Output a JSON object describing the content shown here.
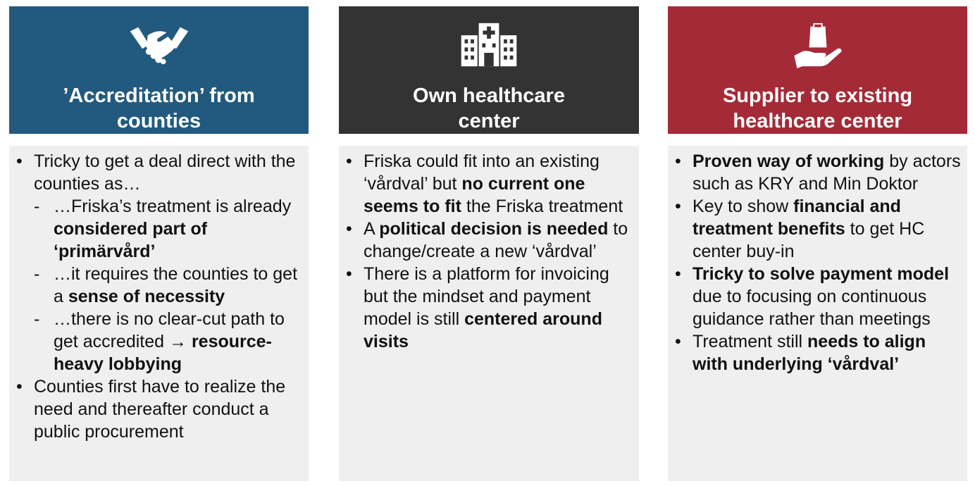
{
  "columns": [
    {
      "title_lines": [
        "’Accreditation’ from",
        "counties"
      ],
      "icon": "handshake-icon",
      "color": "#215a7e",
      "b1": {
        "text": "Tricky to get a deal direct with the counties as…",
        "sub": [
          {
            "pre": "…Friska’s treatment is already ",
            "bold": "considered part of ‘primärvård’"
          },
          {
            "pre": "…it requires the counties to get a ",
            "bold": "sense of necessity"
          },
          {
            "pre": "…there is no clear-cut path to get accredited → ",
            "bold": "resource-heavy lobbying"
          }
        ]
      },
      "b2": {
        "text": "Counties first have to realize the need and thereafter conduct a public procurement"
      }
    },
    {
      "title_lines": [
        "Own healthcare",
        "center"
      ],
      "icon": "hospital-icon",
      "color": "#333333",
      "b1": {
        "pre": "Friska could fit into an existing ‘vårdval’ but ",
        "bold": "no current one seems to fit",
        "post": " the Friska treatment"
      },
      "b2": {
        "pre": "A ",
        "bold": "political decision is needed",
        "post": " to change/create a new ‘vårdval’"
      },
      "b3": {
        "pre": "There is a platform for invoicing but the mindset and payment model is still ",
        "bold": "centered around visits"
      }
    },
    {
      "title_lines": [
        "Supplier to existing",
        "healthcare center"
      ],
      "icon": "hand-holding-bag-icon",
      "color": "#a52a37",
      "b1": {
        "bold": "Proven way of working",
        "post": " by actors such as KRY and Min Doktor"
      },
      "b2": {
        "pre": "Key to show ",
        "bold": "financial and treatment benefits",
        "post": " to get HC center buy-in"
      },
      "b3": {
        "bold": "Tricky to solve payment model",
        "post": " due to focusing on continuous guidance rather than meetings"
      },
      "b4": {
        "pre": "Treatment still ",
        "bold": "needs to align with underlying ‘vårdval’"
      }
    }
  ]
}
